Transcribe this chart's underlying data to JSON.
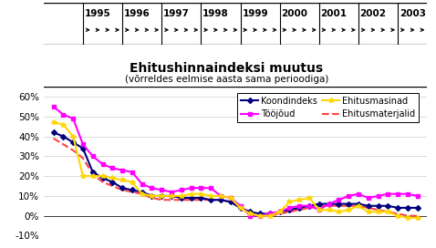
{
  "title": "Ehitushinnaindeksi muutus",
  "subtitle": "(võrreldes eelmise aasta sama perioodiga)",
  "years": [
    1995,
    1996,
    1997,
    1998,
    1999,
    2000,
    2001,
    2002,
    2003
  ],
  "x_quarters": [
    1994.25,
    1994.5,
    1994.75,
    1995.0,
    1995.25,
    1995.5,
    1995.75,
    1996.0,
    1996.25,
    1996.5,
    1996.75,
    1997.0,
    1997.25,
    1997.5,
    1997.75,
    1998.0,
    1998.25,
    1998.5,
    1998.75,
    1999.0,
    1999.25,
    1999.5,
    1999.75,
    2000.0,
    2000.25,
    2000.5,
    2000.75,
    2001.0,
    2001.25,
    2001.5,
    2001.75,
    2002.0,
    2002.25,
    2002.5,
    2002.75,
    2003.0,
    2003.25,
    2003.5
  ],
  "koondindeks": [
    42,
    40,
    37,
    34,
    22,
    19,
    17,
    14,
    13,
    12,
    10,
    10,
    10,
    9,
    9,
    9,
    8,
    8,
    7,
    4,
    2,
    1,
    1,
    2,
    3,
    4,
    5,
    6,
    6,
    6,
    6,
    6,
    5,
    5,
    5,
    4,
    4,
    4
  ],
  "toojoud": [
    55,
    51,
    49,
    36,
    30,
    26,
    24,
    23,
    22,
    16,
    14,
    13,
    12,
    13,
    14,
    14,
    14,
    10,
    9,
    5,
    0,
    0,
    1,
    2,
    4,
    5,
    5,
    3,
    6,
    8,
    10,
    11,
    9,
    10,
    11,
    11,
    11,
    10
  ],
  "ehitusmasinad": [
    47,
    46,
    40,
    20,
    20,
    20,
    19,
    18,
    17,
    11,
    10,
    10,
    10,
    10,
    11,
    11,
    10,
    10,
    9,
    4,
    1,
    0,
    0,
    2,
    7,
    8,
    9,
    3,
    3,
    2,
    3,
    5,
    2,
    2,
    2,
    0,
    -1,
    -1
  ],
  "ehitusmaterjalid": [
    39,
    36,
    33,
    29,
    21,
    17,
    15,
    13,
    12,
    11,
    9,
    8,
    8,
    8,
    8,
    8,
    8,
    8,
    7,
    4,
    1,
    0,
    0,
    1,
    2,
    3,
    4,
    5,
    5,
    5,
    5,
    5,
    4,
    3,
    2,
    1,
    0,
    0
  ],
  "koondindeks_color": "#000080",
  "toojoud_color": "#FF00FF",
  "ehitusmasinad_color": "#FFD700",
  "ehitusmaterjalid_color": "#FF4444",
  "ylim": [
    -10,
    65
  ],
  "yticks": [
    -10,
    0,
    10,
    20,
    30,
    40,
    50,
    60
  ],
  "background_color": "#FFFFFF",
  "grid_color": "#CCCCCC"
}
